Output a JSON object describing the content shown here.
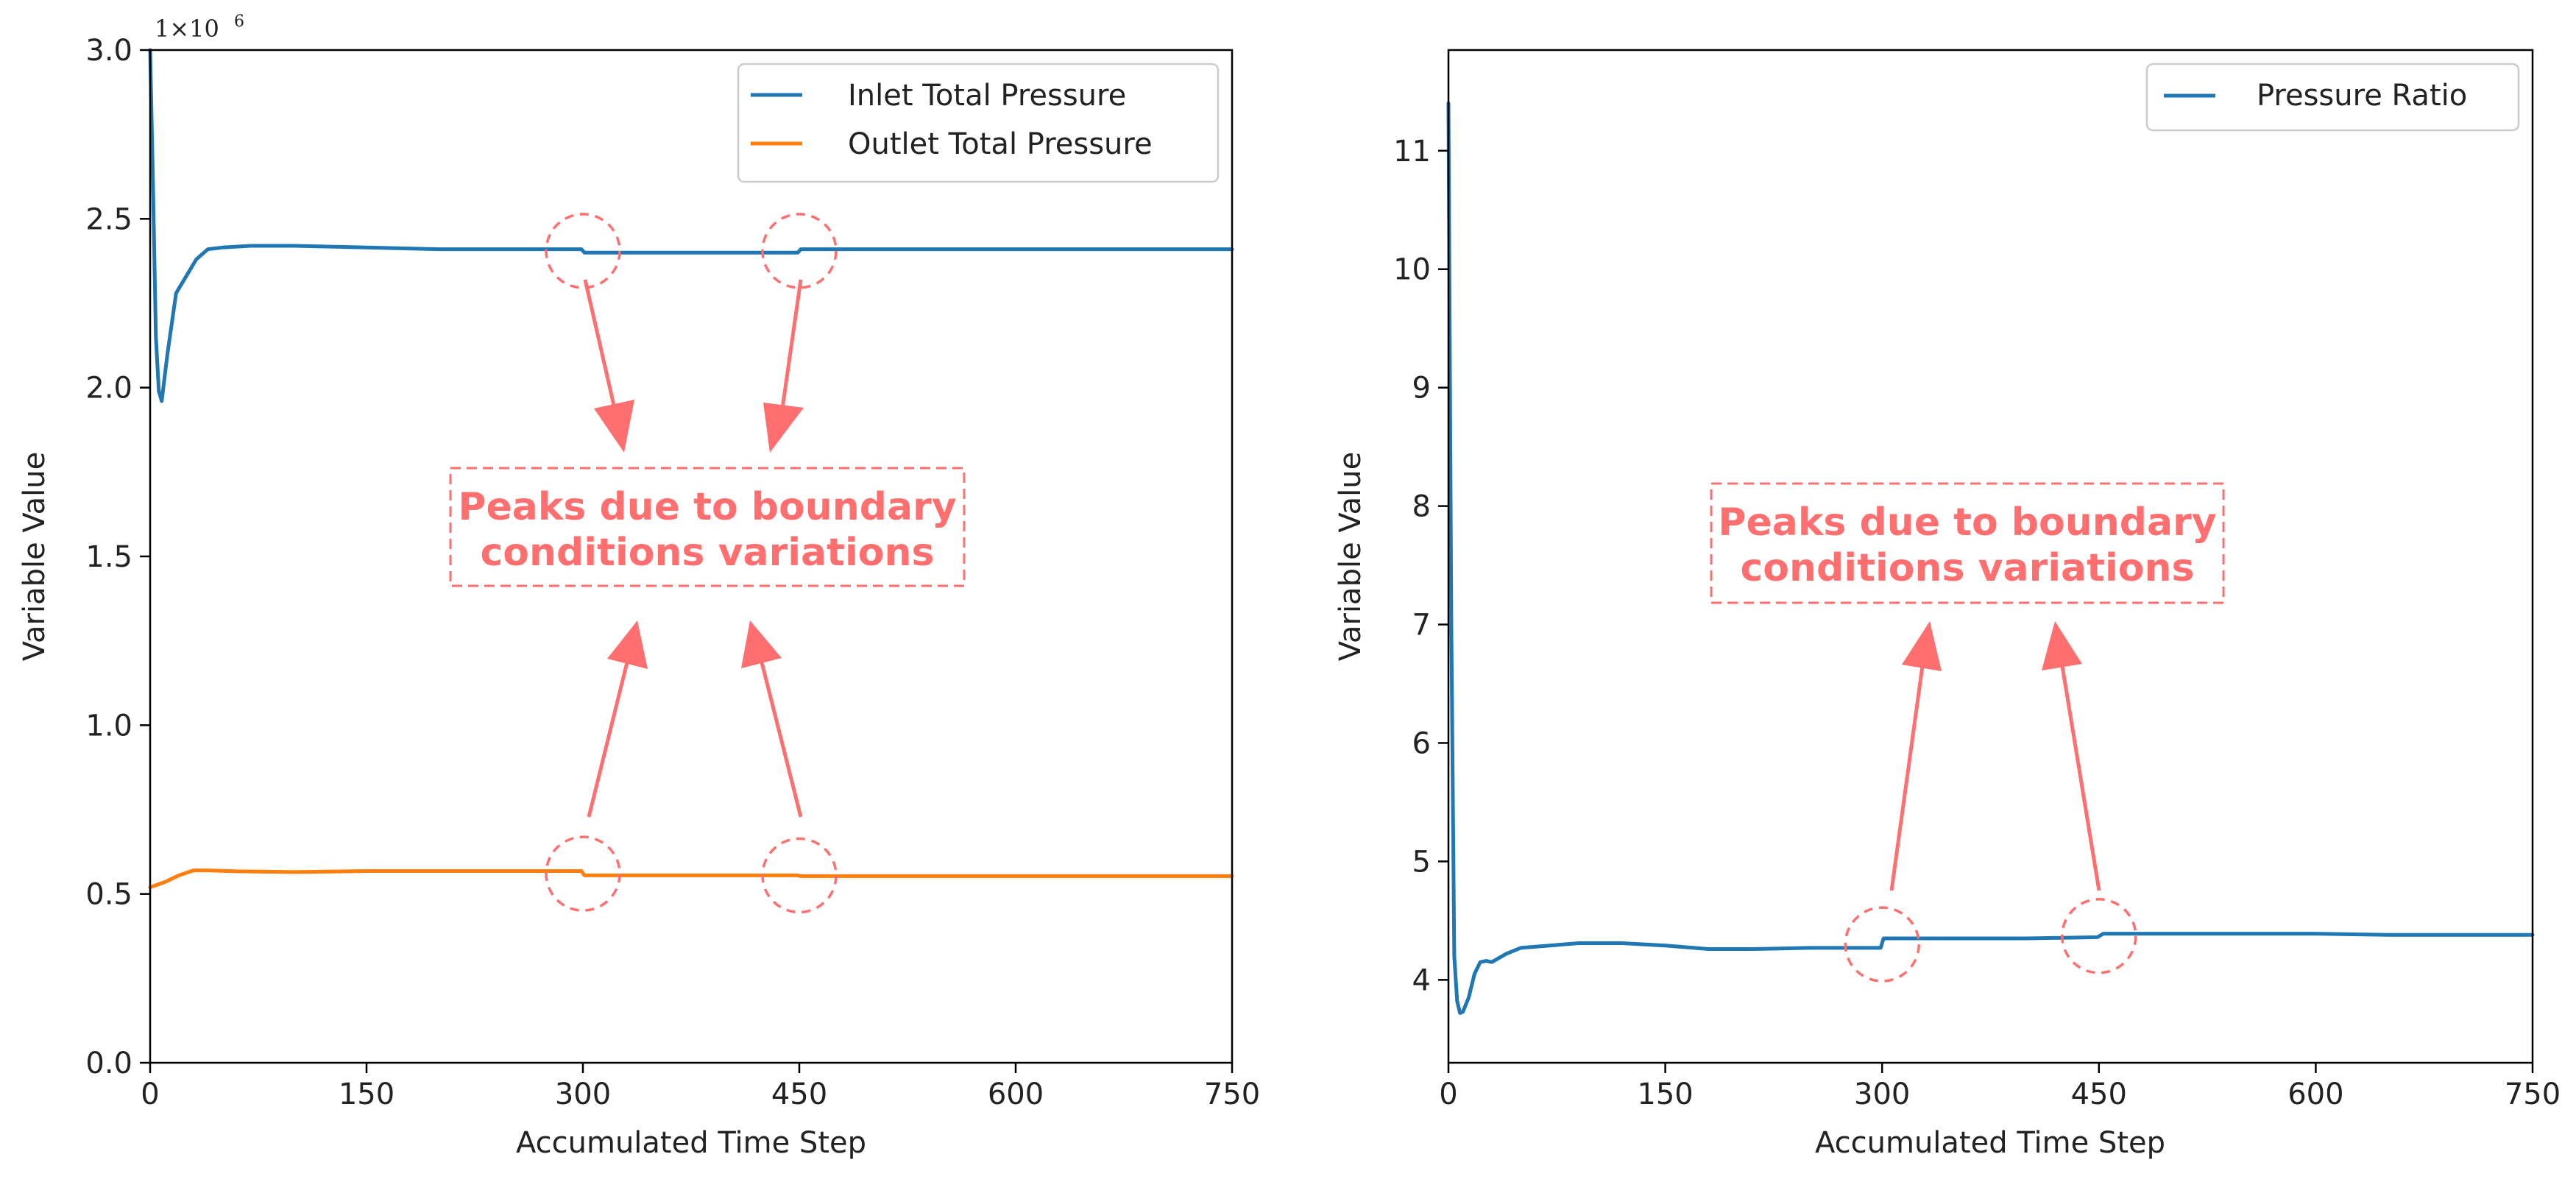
{
  "colors": {
    "inlet": "#1f77b4",
    "outlet": "#ff7f0e",
    "ratio": "#1f77b4",
    "annotation": "#ff6f6f"
  },
  "chart_data": [
    {
      "type": "line",
      "title": "",
      "xlabel": "Accumulated Time Step",
      "ylabel": "Variable Value",
      "xlim": [
        0,
        750
      ],
      "ylim": [
        0.0,
        3.0
      ],
      "y_multiplier": "1×10",
      "y_multiplier_exp": "6",
      "xticks": [
        0,
        150,
        300,
        450,
        600,
        750
      ],
      "xtick_labels": [
        "0",
        "150",
        "300",
        "450",
        "600",
        "750"
      ],
      "yticks": [
        0.0,
        0.5,
        1.0,
        1.5,
        2.0,
        2.5,
        3.0
      ],
      "ytick_labels": [
        "0.0",
        "0.5",
        "1.0",
        "1.5",
        "2.0",
        "2.5",
        "3.0"
      ],
      "legend": "top-right",
      "series": [
        {
          "name": "Inlet Total Pressure",
          "color": "#1f77b4",
          "x": [
            0,
            2,
            4,
            6,
            8,
            12,
            18,
            25,
            32,
            40,
            50,
            70,
            100,
            150,
            200,
            250,
            299,
            301,
            350,
            400,
            449,
            451,
            500,
            600,
            700,
            750
          ],
          "y": [
            3.0,
            2.6,
            2.15,
            1.99,
            1.96,
            2.1,
            2.28,
            2.33,
            2.38,
            2.41,
            2.415,
            2.42,
            2.42,
            2.415,
            2.41,
            2.41,
            2.41,
            2.4,
            2.4,
            2.4,
            2.4,
            2.41,
            2.41,
            2.41,
            2.41,
            2.41
          ]
        },
        {
          "name": "Outlet Total Pressure",
          "color": "#ff7f0e",
          "x": [
            0,
            10,
            20,
            30,
            40,
            60,
            100,
            150,
            200,
            250,
            299,
            301,
            350,
            400,
            449,
            451,
            500,
            600,
            700,
            750
          ],
          "y": [
            0.52,
            0.535,
            0.555,
            0.57,
            0.57,
            0.567,
            0.565,
            0.568,
            0.568,
            0.568,
            0.568,
            0.555,
            0.555,
            0.555,
            0.555,
            0.553,
            0.553,
            0.553,
            0.553,
            0.553
          ]
        }
      ],
      "annotation": {
        "text_lines": [
          "Peaks due to boundary",
          "conditions variations"
        ],
        "markers": [
          {
            "x": 300,
            "y": 2.405
          },
          {
            "x": 450,
            "y": 2.405
          },
          {
            "x": 300,
            "y": 0.56
          },
          {
            "x": 450,
            "y": 0.555
          }
        ]
      }
    },
    {
      "type": "line",
      "title": "",
      "xlabel": "Accumulated Time Step",
      "ylabel": "Variable Value",
      "xlim": [
        0,
        750
      ],
      "ylim": [
        3.3,
        11.85
      ],
      "xticks": [
        0,
        150,
        300,
        450,
        600,
        750
      ],
      "xtick_labels": [
        "0",
        "150",
        "300",
        "450",
        "600",
        "750"
      ],
      "yticks": [
        4,
        5,
        6,
        7,
        8,
        9,
        10,
        11
      ],
      "ytick_labels": [
        "4",
        "5",
        "6",
        "7",
        "8",
        "9",
        "10",
        "11"
      ],
      "legend": "top-right",
      "series": [
        {
          "name": "Pressure Ratio",
          "color": "#1f77b4",
          "x": [
            0,
            2,
            4,
            6,
            8,
            10,
            14,
            18,
            22,
            26,
            30,
            40,
            50,
            70,
            90,
            120,
            150,
            180,
            210,
            250,
            299,
            301,
            350,
            400,
            449,
            453,
            500,
            550,
            600,
            650,
            700,
            750
          ],
          "y": [
            11.4,
            7.0,
            4.2,
            3.82,
            3.72,
            3.73,
            3.85,
            4.05,
            4.15,
            4.16,
            4.15,
            4.22,
            4.27,
            4.29,
            4.31,
            4.31,
            4.29,
            4.26,
            4.26,
            4.27,
            4.27,
            4.35,
            4.35,
            4.35,
            4.36,
            4.39,
            4.39,
            4.39,
            4.39,
            4.38,
            4.38,
            4.38
          ]
        }
      ],
      "annotation": {
        "text_lines": [
          "Peaks due to boundary",
          "conditions variations"
        ],
        "markers": [
          {
            "x": 300,
            "y": 4.3
          },
          {
            "x": 450,
            "y": 4.37
          }
        ]
      }
    }
  ]
}
